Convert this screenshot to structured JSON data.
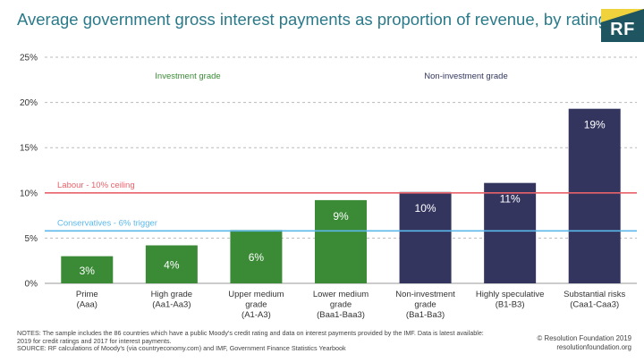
{
  "title": "Average government gross interest payments as proportion of revenue, by rating grade",
  "logo_text": "RF",
  "chart_data": {
    "type": "bar",
    "ylim": [
      0,
      25
    ],
    "yticks": [
      "0%",
      "5%",
      "10%",
      "15%",
      "20%",
      "25%"
    ],
    "ytick_values": [
      0,
      5,
      10,
      15,
      20,
      25
    ],
    "grid": true,
    "categories": [
      [
        "Prime",
        "(Aaa)"
      ],
      [
        "High grade",
        "(Aa1-Aa3)"
      ],
      [
        "Upper medium",
        "grade",
        "(A1-A3)"
      ],
      [
        "Lower medium",
        "grade",
        "(Baa1-Baa3)"
      ],
      [
        "Non-investment",
        "grade",
        "(Ba1-Ba3)"
      ],
      [
        "Highly speculative",
        "(B1-B3)"
      ],
      [
        "Substantial risks",
        "(Caa1-Caa3)"
      ]
    ],
    "values": [
      3.0,
      4.2,
      5.9,
      9.2,
      10.1,
      11.1,
      19.3
    ],
    "data_labels": [
      "3%",
      "4%",
      "6%",
      "9%",
      "10%",
      "11%",
      "19%"
    ],
    "groups": [
      "investment",
      "investment",
      "investment",
      "investment",
      "non-investment",
      "non-investment",
      "non-investment"
    ],
    "group_labels": {
      "investment": "Investment grade",
      "non-investment": "Non-investment grade"
    },
    "reference_lines": [
      {
        "label": "Labour - 10% ceiling",
        "value": 10,
        "color": "#e8626a"
      },
      {
        "label": "Conservatives - 6% trigger",
        "value": 5.8,
        "color": "#5cb8ea"
      }
    ],
    "colors": {
      "investment": "#3a8a36",
      "non-investment": "#33355f",
      "investment_text": "#3a8a36",
      "non_investment_text": "#33355f"
    }
  },
  "notes": [
    "NOTES: The sample includes the 86 countries which have a public Moody's credit rating and data on interest payments provided by the IMF. Data is latest available:",
    "2019 for credit ratings and 2017 for interest payments.",
    "SOURCE: RF calculations of Moody's (via countryeconomy.com) and IMF, Government Finance Statistics Yearbook"
  ],
  "credit": [
    "© Resolution Foundation 2019",
    "resolutionfoundation.org"
  ]
}
